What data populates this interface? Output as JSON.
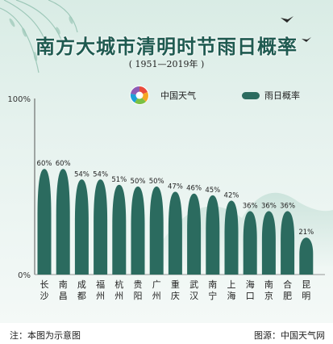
{
  "header": {
    "title": "南方大城市清明时节雨日概率",
    "subtitle": "( 1951—2019年 )"
  },
  "legend": {
    "logo_text": "中国天气",
    "series_label": "雨日概率"
  },
  "colors": {
    "bar": "#2b6b5f",
    "bar_label": "#222222",
    "axis": "#555555",
    "title": "#1f5a50"
  },
  "chart_data": {
    "type": "bar",
    "categories": [
      "长沙",
      "南昌",
      "成都",
      "福州",
      "杭州",
      "贵阳",
      "广州",
      "重庆",
      "武汉",
      "南宁",
      "上海",
      "海口",
      "南京",
      "合肥",
      "昆明"
    ],
    "values": [
      60,
      60,
      54,
      54,
      51,
      50,
      50,
      47,
      46,
      45,
      42,
      36,
      36,
      36,
      21
    ],
    "data_labels": [
      "60%",
      "60%",
      "54%",
      "54%",
      "51%",
      "50%",
      "50%",
      "47%",
      "46%",
      "45%",
      "42%",
      "36%",
      "36%",
      "36%",
      "21%"
    ],
    "series": [
      {
        "name": "雨日概率",
        "values": [
          60,
          60,
          54,
          54,
          51,
          50,
          50,
          47,
          46,
          45,
          42,
          36,
          36,
          36,
          21
        ]
      }
    ],
    "y_tick_labels": [
      "0%",
      "100%"
    ],
    "ylim": [
      0,
      100
    ],
    "grid": false,
    "legend_position": "top-right"
  },
  "footer": {
    "note": "注：本图为示意图",
    "source": "图源：中国天气网"
  }
}
